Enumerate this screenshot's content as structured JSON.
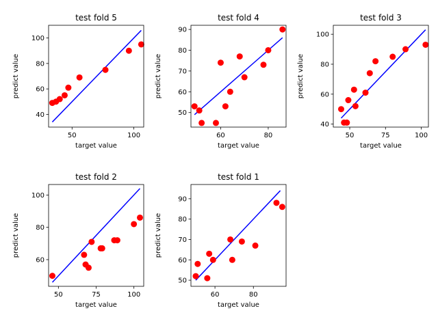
{
  "chart_data": [
    {
      "type": "scatter",
      "title": "test fold 5",
      "xlabel": "target value",
      "ylabel": "predict value",
      "xlim": [
        31,
        108
      ],
      "ylim": [
        30,
        110
      ],
      "xticks": [
        50,
        100
      ],
      "yticks": [
        40,
        60,
        80,
        100
      ],
      "grid": false,
      "points": {
        "x": [
          34,
          37,
          40,
          44,
          47,
          56,
          77,
          96,
          106
        ],
        "y": [
          49,
          50,
          52,
          55,
          61,
          69,
          75,
          90,
          95
        ]
      },
      "fit_line": {
        "x": [
          34,
          106
        ],
        "y": [
          34,
          106
        ]
      },
      "colors": {
        "points": "#ff0000",
        "line": "#0000ff"
      }
    },
    {
      "type": "scatter",
      "title": "test fold 4",
      "xlabel": "target value",
      "ylabel": "predict value",
      "xlim": [
        47.5,
        87.5
      ],
      "ylim": [
        43,
        92
      ],
      "xticks": [
        60,
        80
      ],
      "yticks": [
        50,
        60,
        70,
        80,
        90
      ],
      "grid": false,
      "points": {
        "x": [
          49,
          51,
          52,
          58,
          60,
          62,
          64,
          68,
          70,
          78,
          80,
          86
        ],
        "y": [
          53,
          51,
          45,
          45,
          74,
          53,
          60,
          77,
          67,
          73,
          80,
          90
        ]
      },
      "fit_line": {
        "x": [
          49,
          86
        ],
        "y": [
          49,
          86
        ]
      },
      "colors": {
        "points": "#ff0000",
        "line": "#0000ff"
      }
    },
    {
      "type": "scatter",
      "title": "test fold 3",
      "xlabel": "target value",
      "ylabel": "predict value",
      "xlim": [
        38.5,
        105
      ],
      "ylim": [
        38,
        106
      ],
      "xticks": [
        50,
        75,
        100
      ],
      "yticks": [
        40,
        60,
        80,
        100
      ],
      "grid": false,
      "points": {
        "x": [
          44,
          46,
          48,
          49,
          53,
          54,
          61,
          64,
          68,
          80,
          89,
          103
        ],
        "y": [
          50,
          41,
          41,
          56,
          63,
          52,
          61,
          74,
          82,
          85,
          90,
          93
        ]
      },
      "fit_line": {
        "x": [
          44,
          103
        ],
        "y": [
          44,
          103
        ]
      },
      "colors": {
        "points": "#ff0000",
        "line": "#0000ff"
      }
    },
    {
      "type": "scatter",
      "title": "test fold 2",
      "xlabel": "target value",
      "ylabel": "predict value",
      "xlim": [
        43.5,
        106.5
      ],
      "ylim": [
        43.5,
        106.5
      ],
      "xticks": [
        50,
        75,
        100
      ],
      "yticks": [
        60,
        80,
        100
      ],
      "grid": false,
      "points": {
        "x": [
          46,
          67,
          68,
          70,
          72,
          78,
          79,
          87,
          89,
          100,
          104
        ],
        "y": [
          50,
          63,
          57,
          55,
          71,
          67,
          67,
          72,
          72,
          82,
          86
        ]
      },
      "fit_line": {
        "x": [
          46,
          104
        ],
        "y": [
          46,
          104
        ]
      },
      "colors": {
        "points": "#ff0000",
        "line": "#0000ff"
      }
    },
    {
      "type": "scatter",
      "title": "test fold 1",
      "xlabel": "target value",
      "ylabel": "predict value",
      "xlim": [
        47.5,
        97
      ],
      "ylim": [
        47,
        97
      ],
      "xticks": [
        60,
        80
      ],
      "yticks": [
        50,
        60,
        70,
        80,
        90
      ],
      "grid": false,
      "points": {
        "x": [
          50,
          51,
          56,
          57,
          59,
          68,
          69,
          74,
          81,
          92,
          95
        ],
        "y": [
          52,
          58,
          51,
          63,
          60,
          70,
          60,
          69,
          67,
          88,
          86
        ]
      },
      "fit_line": {
        "x": [
          50,
          94
        ],
        "y": [
          50,
          94
        ]
      },
      "colors": {
        "points": "#ff0000",
        "line": "#0000ff"
      }
    }
  ]
}
